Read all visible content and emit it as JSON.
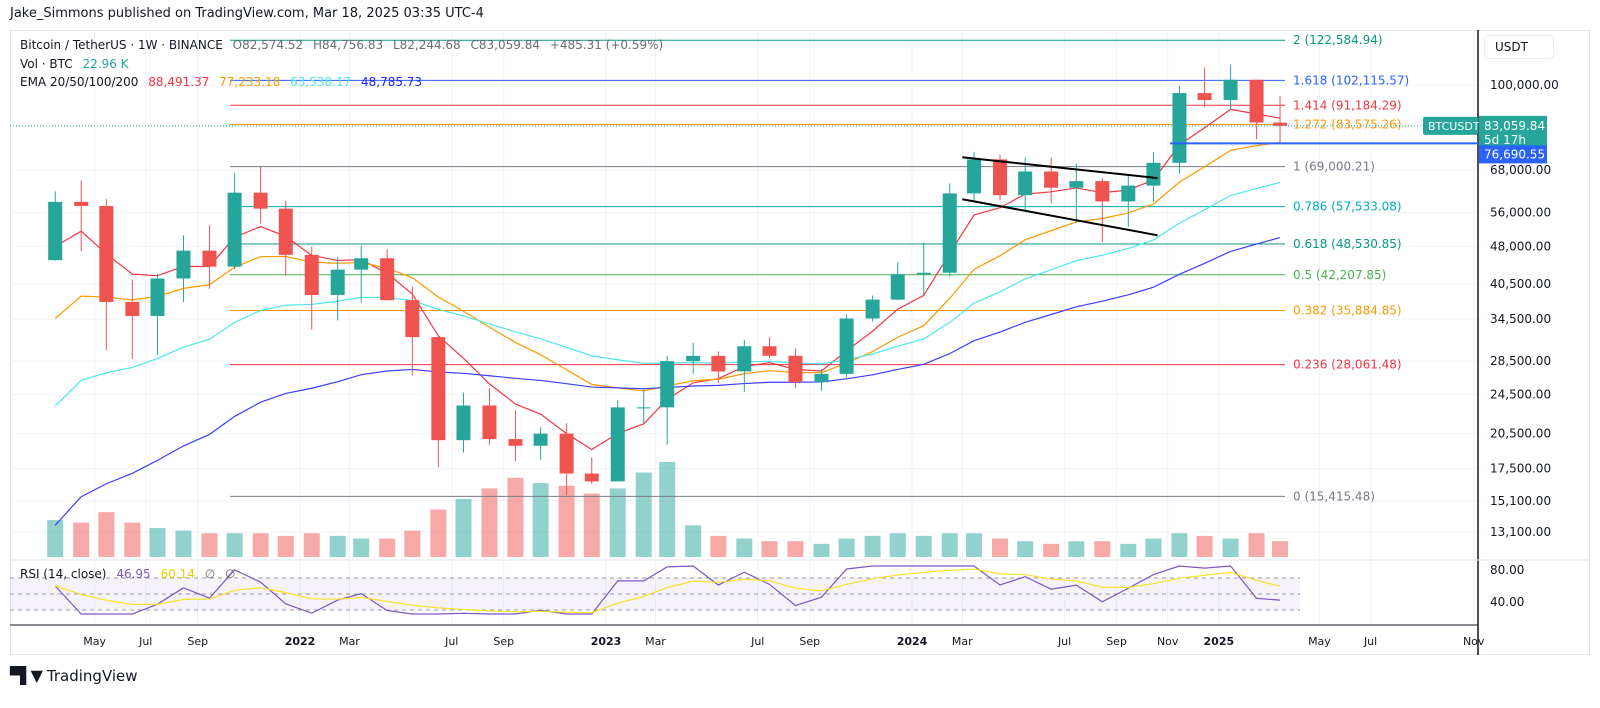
{
  "publisher": "Jake_Simmons published on TradingView.com, Mar 18, 2025 03:35 UTC-4",
  "legend": {
    "symbol": "Bitcoin / TetherUS · 1W · BINANCE",
    "open": "O82,574.52",
    "high": "H84,756.83",
    "low": "L82,244.68",
    "close": "C83,059.84",
    "change": "+485.31 (+0.59%)",
    "vol_label": "Vol · BTC",
    "vol_value": "22.96 K",
    "ema_label": "EMA 20/50/100/200",
    "ema20": "88,491.37",
    "ema50": "77,233.18",
    "ema100": "63,538.17",
    "ema200": "48,785.73",
    "rsi_label": "RSI (14, close)",
    "rsi_value": "46.95",
    "rsi_ma": "60.14",
    "rsi_extra1": "∅",
    "rsi_extra2": "∅"
  },
  "price_axis": {
    "currency": "USDT",
    "ticks": [
      "100,000.00",
      "68,000.00",
      "56,000.00",
      "48,000.00",
      "40,500.00",
      "34,500.00",
      "28,500.00",
      "24,500.00",
      "20,500.00",
      "17,500.00",
      "15,100.00",
      "13,100.00"
    ],
    "tick_values": [
      100000,
      68000,
      56000,
      48000,
      40500,
      34500,
      28500,
      24500,
      20500,
      17500,
      15100,
      13100
    ],
    "last_price_label": "83,059.84",
    "symbol_tag": "BTCUSDT",
    "countdown": "5d 17h",
    "hline_label": "76,690.55",
    "hline_value": 76690.55
  },
  "rsi_axis": {
    "ticks": [
      "80.00",
      "40.00"
    ]
  },
  "time_axis": {
    "ticks": [
      {
        "label": "May",
        "date": "2021-05-01"
      },
      {
        "label": "Jul",
        "date": "2021-07-01"
      },
      {
        "label": "Sep",
        "date": "2021-09-01"
      },
      {
        "label": "2022",
        "date": "2022-01-01",
        "bold": true
      },
      {
        "label": "Mar",
        "date": "2022-03-01"
      },
      {
        "label": "Jul",
        "date": "2022-07-01"
      },
      {
        "label": "Sep",
        "date": "2022-09-01"
      },
      {
        "label": "2023",
        "date": "2023-01-01",
        "bold": true
      },
      {
        "label": "Mar",
        "date": "2023-03-01"
      },
      {
        "label": "Jul",
        "date": "2023-07-01"
      },
      {
        "label": "Sep",
        "date": "2023-09-01"
      },
      {
        "label": "2024",
        "date": "2024-01-01",
        "bold": true
      },
      {
        "label": "Mar",
        "date": "2024-03-01"
      },
      {
        "label": "Jul",
        "date": "2024-07-01"
      },
      {
        "label": "Sep",
        "date": "2024-09-01"
      },
      {
        "label": "Nov",
        "date": "2024-11-01"
      },
      {
        "label": "2025",
        "date": "2025-01-01",
        "bold": true
      },
      {
        "label": "May",
        "date": "2025-05-01"
      },
      {
        "label": "Jul",
        "date": "2025-07-01"
      },
      {
        "label": "Nov",
        "date": "2025-11-01"
      }
    ]
  },
  "colors": {
    "up": "#26a69a",
    "down": "#ef5350",
    "ema20": "#f23645",
    "ema50": "#ff9800",
    "ema100": "#4ee6f0",
    "ema200": "#3d3dff",
    "rsi": "#7e57c2",
    "rsi_ma": "#f5e32a",
    "hline": "#2962ff"
  },
  "chart_data": {
    "type": "candlestick",
    "scale": "log",
    "interval_shown": "1W (approximated monthly)",
    "ylim": [
      12000,
      130000
    ],
    "grid": true,
    "candles": [
      [
        "2021-03",
        45100,
        61700,
        45000,
        58800
      ],
      [
        "2021-04",
        58800,
        64800,
        47000,
        57700
      ],
      [
        "2021-05",
        57700,
        59500,
        30000,
        37300
      ],
      [
        "2021-06",
        37300,
        41300,
        28800,
        35000
      ],
      [
        "2021-07",
        35000,
        42400,
        29300,
        41500
      ],
      [
        "2021-08",
        41500,
        50500,
        37300,
        47100
      ],
      [
        "2021-09",
        47100,
        52900,
        39600,
        43800
      ],
      [
        "2021-10",
        43800,
        67000,
        43300,
        61300
      ],
      [
        "2021-11",
        61300,
        69000,
        53300,
        57000
      ],
      [
        "2021-12",
        57000,
        59100,
        42000,
        46200
      ],
      [
        "2022-01",
        46200,
        47900,
        32900,
        38500
      ],
      [
        "2022-02",
        38500,
        45800,
        34300,
        43200
      ],
      [
        "2022-03",
        43200,
        48200,
        37200,
        45500
      ],
      [
        "2022-04",
        45500,
        47400,
        37600,
        37600
      ],
      [
        "2022-05",
        37600,
        40000,
        26700,
        31800
      ],
      [
        "2022-06",
        31800,
        31900,
        17600,
        19900
      ],
      [
        "2022-07",
        19900,
        24700,
        18800,
        23300
      ],
      [
        "2022-08",
        23300,
        25200,
        19500,
        20000
      ],
      [
        "2022-09",
        20000,
        22800,
        18100,
        19400
      ],
      [
        "2022-10",
        19400,
        21100,
        18200,
        20500
      ],
      [
        "2022-11",
        20500,
        21500,
        15500,
        17100
      ],
      [
        "2022-12",
        17100,
        18400,
        16300,
        16500
      ],
      [
        "2023-01",
        16500,
        23900,
        16500,
        23100
      ],
      [
        "2023-02",
        23100,
        25200,
        21400,
        23100
      ],
      [
        "2023-03",
        23100,
        29200,
        19500,
        28500
      ],
      [
        "2023-04",
        28500,
        31000,
        26900,
        29200
      ],
      [
        "2023-05",
        29200,
        29800,
        25800,
        27200
      ],
      [
        "2023-06",
        27200,
        31400,
        24800,
        30500
      ],
      [
        "2023-07",
        30500,
        31800,
        28900,
        29200
      ],
      [
        "2023-08",
        29200,
        30200,
        25200,
        25900
      ],
      [
        "2023-09",
        25900,
        27500,
        24900,
        26900
      ],
      [
        "2023-10",
        26900,
        35200,
        26500,
        34600
      ],
      [
        "2023-11",
        34600,
        38400,
        34100,
        37700
      ],
      [
        "2023-12",
        37700,
        44700,
        37600,
        42300
      ],
      [
        "2024-01",
        42300,
        48900,
        38500,
        42600
      ],
      [
        "2024-02",
        42600,
        63900,
        41900,
        61100
      ],
      [
        "2024-03",
        61100,
        73800,
        59000,
        71300
      ],
      [
        "2024-04",
        71300,
        72800,
        59200,
        60600
      ],
      [
        "2024-05",
        60600,
        71900,
        56500,
        67500
      ],
      [
        "2024-06",
        67500,
        72000,
        58400,
        62700
      ],
      [
        "2024-07",
        62700,
        70000,
        53500,
        64600
      ],
      [
        "2024-08",
        64600,
        65600,
        49000,
        58900
      ],
      [
        "2024-09",
        58900,
        66500,
        52500,
        63300
      ],
      [
        "2024-10",
        63300,
        73600,
        58900,
        70200
      ],
      [
        "2024-11",
        70200,
        99600,
        66800,
        96400
      ],
      [
        "2024-12",
        96400,
        108300,
        90500,
        93400
      ],
      [
        "2025-01",
        93400,
        109600,
        89200,
        102400
      ],
      [
        "2025-02",
        102400,
        102500,
        78200,
        84300
      ],
      [
        "2025-03",
        84300,
        95000,
        76600,
        83059.84
      ]
    ],
    "volume": [
      14,
      13,
      17,
      13,
      11,
      10,
      9,
      9,
      9,
      8,
      9,
      8,
      7,
      7,
      10,
      18,
      22,
      26,
      30,
      28,
      27,
      24,
      26,
      32,
      36,
      12,
      8,
      7,
      6,
      6,
      5,
      7,
      8,
      9,
      8,
      9,
      9,
      7,
      6,
      5,
      6,
      6,
      5,
      7,
      9,
      8,
      7,
      9,
      6
    ],
    "fib_levels": [
      {
        "ratio": "2",
        "price": 122584.94,
        "label": "2 (122,584.94)",
        "color": "#089981"
      },
      {
        "ratio": "1.618",
        "price": 102115.57,
        "label": "1.618 (102,115.57)",
        "color": "#2962ff"
      },
      {
        "ratio": "1.414",
        "price": 91184.29,
        "label": "1.414 (91,184.29)",
        "color": "#f23645"
      },
      {
        "ratio": "1.272",
        "price": 83575.26,
        "label": "1.272 (83,575.26)",
        "color": "#ff9800"
      },
      {
        "ratio": "1",
        "price": 69000.21,
        "label": "1 (69,000.21)",
        "color": "#787b86"
      },
      {
        "ratio": "0.786",
        "price": 57533.08,
        "label": "0.786 (57,533.08)",
        "color": "#00acc1"
      },
      {
        "ratio": "0.618",
        "price": 48530.85,
        "label": "0.618 (48,530.85)",
        "color": "#089981"
      },
      {
        "ratio": "0.5",
        "price": 42207.85,
        "label": "0.5 (42,207.85)",
        "color": "#4caf50"
      },
      {
        "ratio": "0.382",
        "price": 35884.85,
        "label": "0.382 (35,884.85)",
        "color": "#ff9800"
      },
      {
        "ratio": "0.236",
        "price": 28061.48,
        "label": "0.236 (28,061.48)",
        "color": "#f23645"
      },
      {
        "ratio": "0",
        "price": 15415.48,
        "label": "0 (15,415.48)",
        "color": "#787b86"
      }
    ],
    "trendlines": [
      {
        "from": [
          "2024-03-01",
          72000
        ],
        "to": [
          "2024-10-20",
          65500
        ]
      },
      {
        "from": [
          "2024-03-01",
          59500
        ],
        "to": [
          "2024-10-20",
          50500
        ]
      }
    ]
  },
  "footer": {
    "brand": "TradingView",
    "logo_text": "TV"
  }
}
